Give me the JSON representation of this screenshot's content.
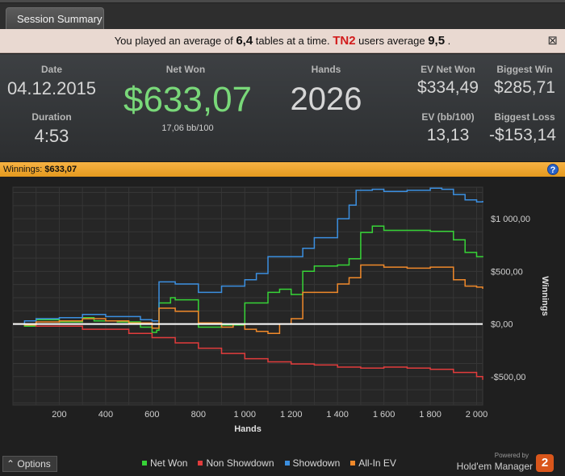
{
  "tab": {
    "label": "Session Summary"
  },
  "notice": {
    "p1": "You played an average of",
    "avg_tables": "6,4",
    "p2": "tables at a time.",
    "tn2": "TN2",
    "p3": "users average",
    "tn2_avg": "9,5",
    "p4": "."
  },
  "stats": {
    "date_label": "Date",
    "date": "04.12.2015",
    "duration_label": "Duration",
    "duration": "4:53",
    "netwon_label": "Net Won",
    "netwon": "$633,07",
    "bb100": "17,06 bb/100",
    "hands_label": "Hands",
    "hands": "2026",
    "evnet_label": "EV Net Won",
    "evnet": "$334,49",
    "evbb_label": "EV (bb/100)",
    "evbb": "13,13",
    "bigwin_label": "Biggest Win",
    "bigwin": "$285,71",
    "bigloss_label": "Biggest Loss",
    "bigloss": "-$153,14"
  },
  "winnings_bar": {
    "label": "Winnings:",
    "value": "$633,07"
  },
  "colors": {
    "net_won": "#37d437",
    "non_showdown": "#e23c3c",
    "showdown": "#3b8fe0",
    "allin_ev": "#f0892a"
  },
  "chart_data": {
    "type": "line",
    "xlabel": "Hands",
    "ylabel": "Winnings",
    "xlim": [
      0,
      2026
    ],
    "ylim": [
      -770,
      1300
    ],
    "x_ticks": [
      200,
      400,
      600,
      800,
      1000,
      1200,
      1400,
      1600,
      1800,
      2000
    ],
    "x_tick_labels": [
      "200",
      "400",
      "600",
      "800",
      "1 000",
      "1 200",
      "1 400",
      "1 600",
      "1 800",
      "2 000"
    ],
    "y_ticks": [
      -500,
      0,
      500,
      1000
    ],
    "y_tick_labels": [
      "-$500,00",
      "$0,00",
      "$500,00",
      "$1 000,00"
    ],
    "series": [
      {
        "name": "Net Won",
        "color": "#37d437",
        "points": [
          [
            0,
            0
          ],
          [
            50,
            -20
          ],
          [
            100,
            40
          ],
          [
            200,
            20
          ],
          [
            300,
            60
          ],
          [
            350,
            30
          ],
          [
            450,
            20
          ],
          [
            550,
            -30
          ],
          [
            600,
            -80
          ],
          [
            620,
            -60
          ],
          [
            630,
            200
          ],
          [
            680,
            250
          ],
          [
            700,
            230
          ],
          [
            800,
            -30
          ],
          [
            900,
            -10
          ],
          [
            1000,
            200
          ],
          [
            1100,
            300
          ],
          [
            1150,
            330
          ],
          [
            1200,
            280
          ],
          [
            1250,
            500
          ],
          [
            1300,
            550
          ],
          [
            1400,
            560
          ],
          [
            1450,
            620
          ],
          [
            1500,
            870
          ],
          [
            1550,
            930
          ],
          [
            1600,
            890
          ],
          [
            1700,
            890
          ],
          [
            1800,
            880
          ],
          [
            1850,
            880
          ],
          [
            1900,
            800
          ],
          [
            1950,
            680
          ],
          [
            2000,
            640
          ],
          [
            2026,
            633
          ]
        ]
      },
      {
        "name": "Non Showdown",
        "color": "#e23c3c",
        "points": [
          [
            0,
            0
          ],
          [
            100,
            -20
          ],
          [
            300,
            -50
          ],
          [
            500,
            -90
          ],
          [
            600,
            -130
          ],
          [
            700,
            -180
          ],
          [
            800,
            -230
          ],
          [
            900,
            -280
          ],
          [
            1000,
            -330
          ],
          [
            1100,
            -360
          ],
          [
            1200,
            -380
          ],
          [
            1300,
            -390
          ],
          [
            1400,
            -410
          ],
          [
            1500,
            -420
          ],
          [
            1600,
            -410
          ],
          [
            1700,
            -420
          ],
          [
            1800,
            -430
          ],
          [
            1900,
            -460
          ],
          [
            2000,
            -500
          ],
          [
            2026,
            -530
          ]
        ]
      },
      {
        "name": "Showdown",
        "color": "#3b8fe0",
        "points": [
          [
            0,
            0
          ],
          [
            50,
            30
          ],
          [
            100,
            50
          ],
          [
            200,
            60
          ],
          [
            300,
            90
          ],
          [
            400,
            70
          ],
          [
            550,
            40
          ],
          [
            600,
            30
          ],
          [
            630,
            400
          ],
          [
            700,
            380
          ],
          [
            800,
            300
          ],
          [
            900,
            360
          ],
          [
            1000,
            420
          ],
          [
            1050,
            480
          ],
          [
            1100,
            640
          ],
          [
            1200,
            640
          ],
          [
            1250,
            720
          ],
          [
            1300,
            820
          ],
          [
            1400,
            1000
          ],
          [
            1450,
            1130
          ],
          [
            1480,
            1270
          ],
          [
            1550,
            1280
          ],
          [
            1600,
            1260
          ],
          [
            1700,
            1270
          ],
          [
            1800,
            1290
          ],
          [
            1850,
            1280
          ],
          [
            1900,
            1230
          ],
          [
            1950,
            1180
          ],
          [
            2000,
            1160
          ],
          [
            2026,
            1170
          ]
        ]
      },
      {
        "name": "All-In EV",
        "color": "#f0892a",
        "points": [
          [
            0,
            0
          ],
          [
            50,
            -10
          ],
          [
            100,
            20
          ],
          [
            200,
            30
          ],
          [
            300,
            50
          ],
          [
            400,
            30
          ],
          [
            500,
            10
          ],
          [
            600,
            -40
          ],
          [
            630,
            150
          ],
          [
            700,
            120
          ],
          [
            800,
            10
          ],
          [
            900,
            -30
          ],
          [
            950,
            0
          ],
          [
            1000,
            -50
          ],
          [
            1050,
            -70
          ],
          [
            1100,
            -90
          ],
          [
            1150,
            0
          ],
          [
            1200,
            50
          ],
          [
            1250,
            300
          ],
          [
            1300,
            300
          ],
          [
            1400,
            380
          ],
          [
            1450,
            440
          ],
          [
            1500,
            560
          ],
          [
            1600,
            540
          ],
          [
            1700,
            530
          ],
          [
            1800,
            540
          ],
          [
            1900,
            420
          ],
          [
            1950,
            360
          ],
          [
            2000,
            350
          ],
          [
            2026,
            334
          ]
        ]
      }
    ]
  },
  "options": {
    "label": "Options"
  },
  "footer": {
    "powered": "Powered by",
    "brand": "Hold'em Manager",
    "logo": "2"
  }
}
